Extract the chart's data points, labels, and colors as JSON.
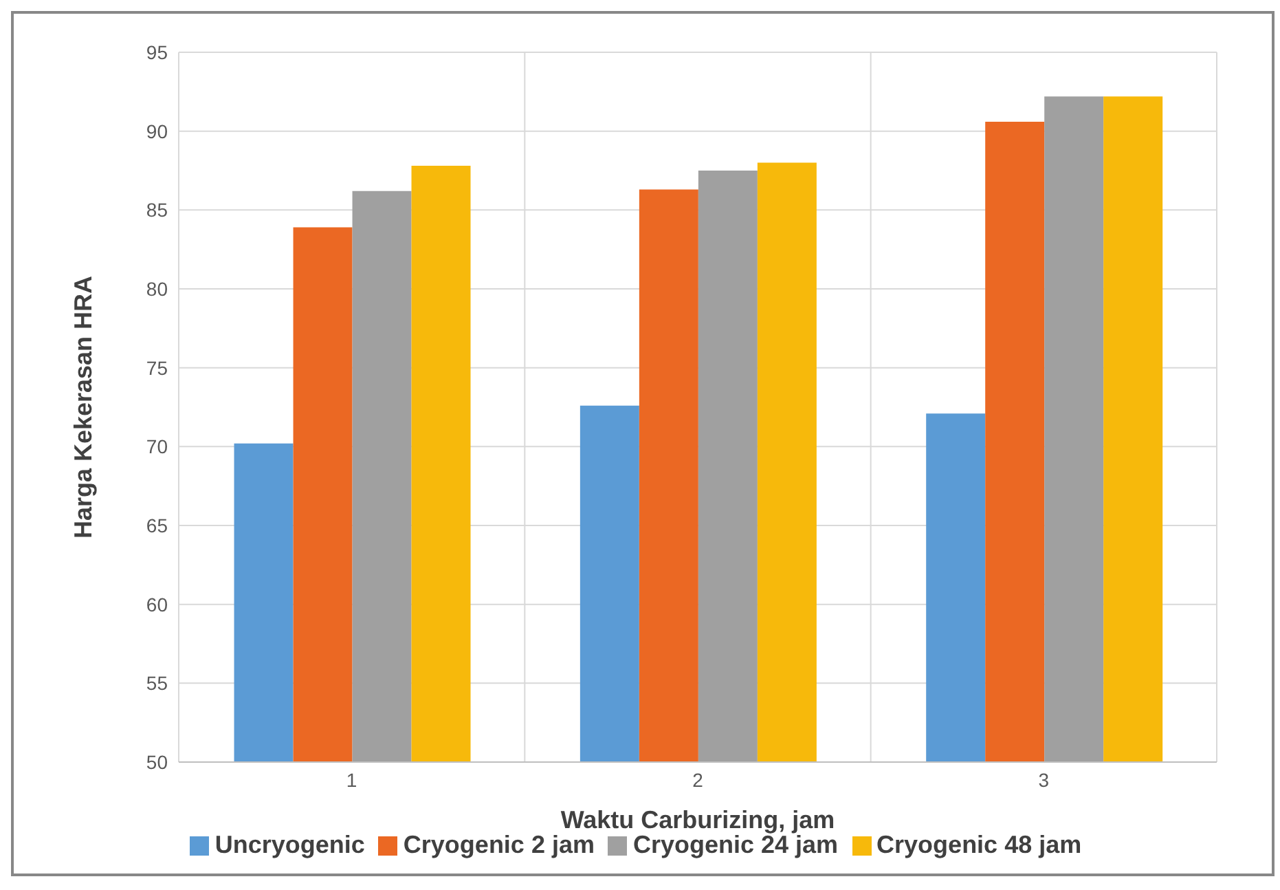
{
  "chart_data": {
    "type": "bar",
    "xlabel": "Waktu Carburizing, jam",
    "ylabel": "Harga Kekerasan HRA",
    "categories": [
      "1",
      "2",
      "3"
    ],
    "series": [
      {
        "name": "Uncryogenic",
        "color": "#5b9bd5",
        "values": [
          70.2,
          72.6,
          72.1
        ]
      },
      {
        "name": "Cryogenic 2 jam",
        "color": "#eb6823",
        "values": [
          83.9,
          86.3,
          90.6
        ]
      },
      {
        "name": "Cryogenic 24 jam",
        "color": "#a0a0a0",
        "values": [
          86.2,
          87.5,
          92.2
        ]
      },
      {
        "name": "Cryogenic 48 jam",
        "color": "#f7b90b",
        "values": [
          87.8,
          88.0,
          92.2
        ]
      }
    ],
    "ylim": [
      50,
      95
    ],
    "yticks": [
      50,
      55,
      60,
      65,
      70,
      75,
      80,
      85,
      90,
      95
    ],
    "grid": true,
    "legend": "bottom"
  }
}
